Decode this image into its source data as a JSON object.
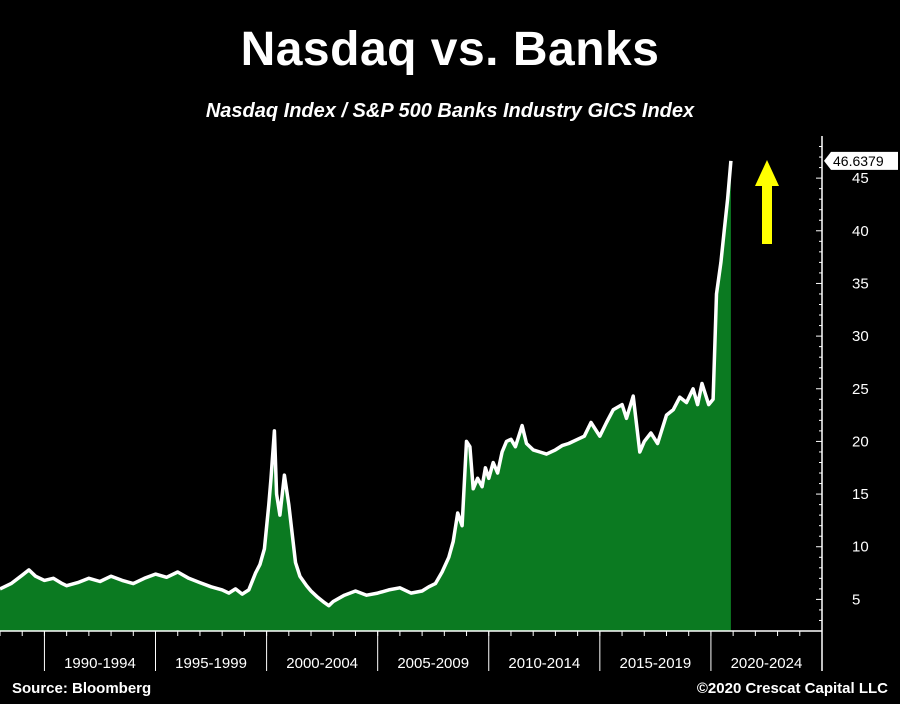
{
  "chart_data": {
    "type": "area",
    "title": "Nasdaq vs. Banks",
    "subtitle": "Nasdaq Index  /  S&P 500 Banks Industry GICS Index",
    "source": "Source: Bloomberg",
    "copyright": "©2020 Crescat Capital LLC",
    "last_value_label": "46.6379",
    "xlim": [
      1988.0,
      2025.0
    ],
    "ylim": [
      2.0,
      49.0
    ],
    "y_ticks": [
      5,
      10,
      15,
      20,
      25,
      30,
      35,
      40,
      45
    ],
    "x_period_labels": [
      "1990-1994",
      "1995-1999",
      "2000-2004",
      "2005-2009",
      "2010-2014",
      "2015-2019",
      "2020-2024"
    ],
    "x_period_boundaries": [
      1990,
      1995,
      2000,
      2005,
      2010,
      2015,
      2020,
      2025
    ],
    "series": [
      {
        "name": "Nasdaq Index / S&P 500 Banks Industry GICS Index",
        "x": [
          1988.0,
          1988.5,
          1989.0,
          1989.3,
          1989.6,
          1990.0,
          1990.4,
          1990.8,
          1991.0,
          1991.5,
          1992.0,
          1992.5,
          1993.0,
          1993.5,
          1994.0,
          1994.5,
          1995.0,
          1995.5,
          1996.0,
          1996.5,
          1997.0,
          1997.5,
          1998.0,
          1998.3,
          1998.6,
          1998.9,
          1999.2,
          1999.5,
          1999.7,
          1999.9,
          2000.1,
          2000.2,
          2000.35,
          2000.45,
          2000.6,
          2000.8,
          2001.0,
          2001.3,
          2001.5,
          2001.8,
          2002.0,
          2002.3,
          2002.6,
          2002.8,
          2003.0,
          2003.5,
          2004.0,
          2004.5,
          2005.0,
          2005.5,
          2006.0,
          2006.5,
          2007.0,
          2007.3,
          2007.6,
          2007.9,
          2008.2,
          2008.4,
          2008.6,
          2008.8,
          2009.0,
          2009.15,
          2009.3,
          2009.5,
          2009.7,
          2009.85,
          2010.0,
          2010.2,
          2010.4,
          2010.6,
          2010.8,
          2011.0,
          2011.2,
          2011.5,
          2011.7,
          2012.0,
          2012.3,
          2012.6,
          2013.0,
          2013.3,
          2013.6,
          2014.0,
          2014.3,
          2014.6,
          2015.0,
          2015.3,
          2015.6,
          2016.0,
          2016.2,
          2016.5,
          2016.8,
          2017.0,
          2017.3,
          2017.6,
          2018.0,
          2018.3,
          2018.6,
          2018.9,
          2019.2,
          2019.4,
          2019.6,
          2019.9,
          2020.1,
          2020.25,
          2020.45,
          2020.6,
          2020.75,
          2020.9
        ],
        "values": [
          6.0,
          6.5,
          7.3,
          7.8,
          7.2,
          6.8,
          7.0,
          6.5,
          6.3,
          6.6,
          7.0,
          6.7,
          7.2,
          6.8,
          6.5,
          7.0,
          7.4,
          7.1,
          7.6,
          7.0,
          6.6,
          6.2,
          5.9,
          5.6,
          6.0,
          5.5,
          5.9,
          7.5,
          8.3,
          9.8,
          14.0,
          16.5,
          21.0,
          15.0,
          13.0,
          16.8,
          14.0,
          8.5,
          7.2,
          6.3,
          5.8,
          5.2,
          4.7,
          4.4,
          4.8,
          5.4,
          5.8,
          5.4,
          5.6,
          5.9,
          6.1,
          5.6,
          5.8,
          6.2,
          6.5,
          7.6,
          9.0,
          10.5,
          13.2,
          12.0,
          20.0,
          19.5,
          15.5,
          16.5,
          15.7,
          17.5,
          16.5,
          18.0,
          17.0,
          19.0,
          20.0,
          20.2,
          19.5,
          21.5,
          19.8,
          19.2,
          19.0,
          18.8,
          19.2,
          19.6,
          19.8,
          20.2,
          20.5,
          21.8,
          20.5,
          21.8,
          23.0,
          23.5,
          22.2,
          24.3,
          19.0,
          20.0,
          20.8,
          19.8,
          22.5,
          23.0,
          24.2,
          23.7,
          25.0,
          23.5,
          25.5,
          23.5,
          24.0,
          34.0,
          37.0,
          40.0,
          43.0,
          46.6379
        ]
      }
    ],
    "annotation": {
      "type": "arrow",
      "direction": "up",
      "color": "#FFFF00"
    },
    "colors": {
      "fill": "#0B7A21",
      "line": "#FFFFFF",
      "background": "#000000",
      "axis": "#FFFFFF"
    }
  }
}
